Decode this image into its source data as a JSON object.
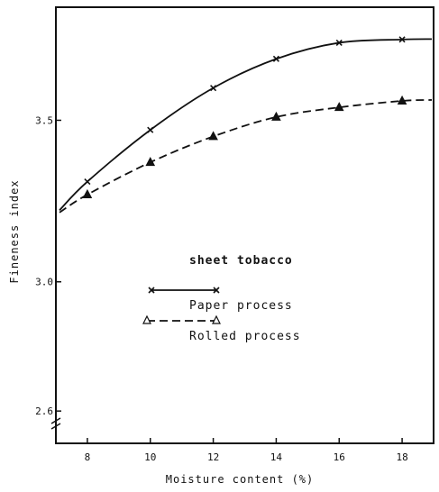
{
  "chart_data": {
    "type": "line",
    "xlabel": "Moisture content (%)",
    "ylabel": "Fineness index",
    "xlim": [
      7,
      19
    ],
    "ylim": [
      2.5,
      3.85
    ],
    "x_ticks": [
      8,
      10,
      12,
      14,
      16,
      18
    ],
    "y_ticks": [
      2.6,
      3.0,
      3.5
    ],
    "x_tick_labels": [
      "8",
      "10",
      "12",
      "14",
      "16",
      "18"
    ],
    "y_tick_labels": [
      "2.6",
      "3.0",
      "3.5"
    ],
    "grid": false,
    "legend": {
      "title": "sheet tobacco",
      "placement": "center-left"
    },
    "series": [
      {
        "name": "Paper process",
        "line_style": "solid",
        "marker": "x",
        "x": [
          8,
          10,
          12,
          14,
          16,
          18
        ],
        "y": [
          3.31,
          3.47,
          3.6,
          3.69,
          3.74,
          3.75
        ]
      },
      {
        "name": "Rolled process",
        "line_style": "dashed",
        "marker": "triangle",
        "x": [
          8,
          10,
          12,
          14,
          16,
          18
        ],
        "y": [
          3.27,
          3.37,
          3.45,
          3.51,
          3.54,
          3.56
        ]
      }
    ]
  }
}
